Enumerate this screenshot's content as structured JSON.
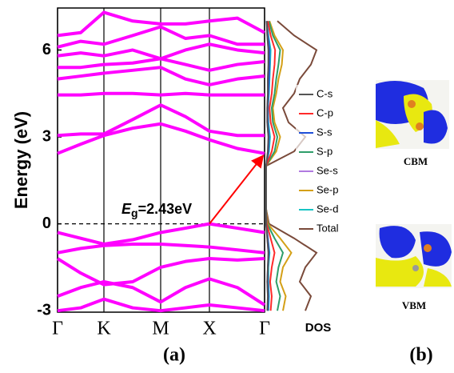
{
  "chart_data": [
    {
      "type": "line",
      "y_label": "Energy (eV)",
      "x": [
        0,
        0.29,
        0.58,
        0.94,
        1.29,
        1.6,
        1.9,
        2.25,
        2.59
      ],
      "xlim": [
        0,
        2.59
      ],
      "xticks": [
        {
          "value": 0,
          "label": "Γ"
        },
        {
          "value": 0.58,
          "label": "K"
        },
        {
          "value": 1.29,
          "label": "M"
        },
        {
          "value": 1.9,
          "label": "X"
        },
        {
          "value": 2.59,
          "label": "Γ"
        }
      ],
      "ylim": [
        -3.05,
        7.45
      ],
      "yticks": [
        -3,
        0,
        3,
        6
      ],
      "reference_line": 0,
      "annotation": {
        "italic": "E",
        "subscript": "g",
        "text": "=2.43eV"
      },
      "arrow": {
        "from": [
          1.9,
          0
        ],
        "to": [
          2.59,
          2.43
        ],
        "color": "#ff0000"
      },
      "series": [
        {
          "color": "#ff00ff",
          "values": [
            -0.3,
            -0.5,
            -0.7,
            -0.55,
            -0.3,
            -0.15,
            0,
            -0.15,
            -0.3
          ]
        },
        {
          "color": "#ff00ff",
          "values": [
            -1.0,
            -0.85,
            -0.75,
            -0.7,
            -0.7,
            -0.75,
            -0.8,
            -0.9,
            -1.0
          ]
        },
        {
          "color": "#ff00ff",
          "values": [
            -1.2,
            -1.7,
            -2.1,
            -2.0,
            -1.5,
            -1.3,
            -1.2,
            -1.25,
            -1.2
          ]
        },
        {
          "color": "#ff00ff",
          "values": [
            -2.5,
            -2.2,
            -2.0,
            -2.2,
            -2.7,
            -2.2,
            -1.9,
            -2.2,
            -2.8
          ]
        },
        {
          "color": "#ff00ff",
          "values": [
            -3.0,
            -2.9,
            -2.6,
            -2.9,
            -3.0,
            -2.9,
            -2.8,
            -2.9,
            -3.0
          ]
        },
        {
          "color": "#ff00ff",
          "values": [
            2.43,
            2.75,
            3.05,
            3.3,
            3.45,
            3.2,
            2.9,
            2.6,
            2.43
          ]
        },
        {
          "color": "#ff00ff",
          "values": [
            3.05,
            3.1,
            3.1,
            3.6,
            4.1,
            3.7,
            3.2,
            3.05,
            3.05
          ]
        },
        {
          "color": "#ff00ff",
          "values": [
            4.45,
            4.45,
            4.5,
            4.5,
            4.45,
            4.5,
            4.45,
            4.45,
            4.45
          ]
        },
        {
          "color": "#ff00ff",
          "values": [
            5.0,
            5.1,
            5.2,
            5.3,
            5.4,
            5.0,
            4.8,
            5.0,
            5.1
          ]
        },
        {
          "color": "#ff00ff",
          "values": [
            5.4,
            5.4,
            5.5,
            5.55,
            5.7,
            5.5,
            5.3,
            5.5,
            5.6
          ]
        },
        {
          "color": "#ff00ff",
          "values": [
            5.8,
            5.9,
            5.8,
            6.0,
            5.7,
            6.0,
            6.2,
            6.0,
            5.9
          ]
        },
        {
          "color": "#ff00ff",
          "values": [
            6.1,
            6.3,
            6.2,
            6.5,
            6.8,
            6.4,
            6.5,
            6.2,
            6.2
          ]
        },
        {
          "color": "#ff00ff",
          "values": [
            6.5,
            6.6,
            7.3,
            7.0,
            6.9,
            6.9,
            7.0,
            7.1,
            6.6
          ]
        }
      ]
    },
    {
      "type": "line",
      "orientation": "horizontal",
      "x_label": "DOS",
      "x": [
        -3,
        -2.5,
        -2,
        -1.5,
        -1,
        -0.5,
        0,
        0.5,
        1,
        1.5,
        2,
        2.5,
        3,
        3.5,
        4,
        4.5,
        5,
        5.5,
        6,
        6.5,
        7
      ],
      "xlim": [
        -3.05,
        7.45
      ],
      "ylim": [
        0,
        10
      ],
      "legend": "right",
      "series": [
        {
          "name": "C-s",
          "color": "#555555",
          "values": [
            0.2,
            0.3,
            0.2,
            0.3,
            0.4,
            0.2,
            0,
            0,
            0,
            0,
            0,
            0.3,
            0.4,
            0.2,
            0.2,
            0.3,
            0.3,
            0.4,
            0.4,
            0.2,
            0.1
          ]
        },
        {
          "name": "C-p",
          "color": "#ff2a2a",
          "values": [
            0.8,
            1,
            0.7,
            1,
            1.5,
            0.8,
            0.1,
            0,
            0,
            0,
            0,
            1,
            1.5,
            0.8,
            0.6,
            1,
            1.2,
            1.5,
            1.6,
            0.8,
            0.3
          ]
        },
        {
          "name": "S-s",
          "color": "#1f4fd8",
          "values": [
            0.3,
            0.4,
            0.3,
            0.3,
            0.5,
            0.3,
            0,
            0,
            0,
            0,
            0,
            0.4,
            0.5,
            0.3,
            0.3,
            0.4,
            0.5,
            0.6,
            0.6,
            0.3,
            0.1
          ]
        },
        {
          "name": "S-p",
          "color": "#2e9e6a",
          "values": [
            2,
            2.5,
            1.8,
            2.2,
            3,
            1.5,
            0.2,
            0,
            0,
            0,
            0,
            1.5,
            2,
            1.2,
            1,
            1.5,
            1.8,
            2.2,
            2.5,
            1.2,
            0.5
          ]
        },
        {
          "name": "Se-s",
          "color": "#b07ae0",
          "values": [
            0.3,
            0.3,
            0.2,
            0.3,
            0.4,
            0.2,
            0,
            0,
            0,
            0,
            0,
            0.3,
            0.4,
            0.2,
            0.2,
            0.3,
            0.3,
            0.4,
            0.4,
            0.2,
            0.1
          ]
        },
        {
          "name": "Se-p",
          "color": "#d4a017",
          "values": [
            3,
            3.5,
            2.5,
            3,
            4.5,
            2.5,
            0.3,
            0,
            0,
            0,
            0,
            1.8,
            2.5,
            1.5,
            1.2,
            1.8,
            2.2,
            2.8,
            3,
            1.5,
            0.6
          ]
        },
        {
          "name": "Se-d",
          "color": "#17c4c4",
          "values": [
            0.4,
            0.5,
            0.4,
            0.4,
            0.6,
            0.3,
            0,
            0,
            0,
            0,
            0,
            0.5,
            0.7,
            0.4,
            0.3,
            0.5,
            0.6,
            0.7,
            0.8,
            0.4,
            0.1
          ]
        },
        {
          "name": "Total",
          "color": "#7a4a3a",
          "values": [
            7,
            8,
            6,
            7,
            9,
            5,
            0.5,
            0,
            0,
            0,
            0,
            5,
            7,
            4,
            3,
            5,
            6,
            8,
            9,
            5,
            2
          ]
        }
      ]
    }
  ],
  "figure": {
    "panel_labels": [
      "(a)",
      "(b)"
    ],
    "orbitals": [
      {
        "label": "CBM"
      },
      {
        "label": "VBM"
      }
    ]
  }
}
